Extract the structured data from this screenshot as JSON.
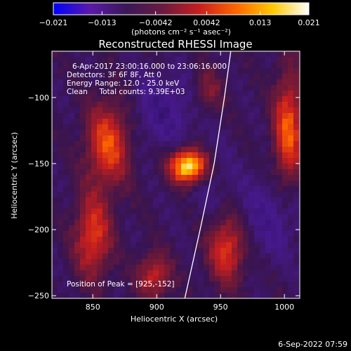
{
  "chart_data": {
    "type": "heatmap",
    "title": "Reconstructed RHESSI Image",
    "xlabel": "Heliocentric X (arcsec)",
    "ylabel": "Heliocentric Y (arcsec)",
    "xlim": [
      818,
      1012
    ],
    "ylim": [
      -252,
      -65
    ],
    "x_ticks": [
      850,
      900,
      950,
      1000
    ],
    "y_ticks": [
      -100,
      -150,
      -200,
      -250
    ],
    "x_tick_labels": [
      "850",
      "900",
      "950",
      "1000"
    ],
    "y_tick_labels": [
      "−100",
      "−150",
      "−200",
      "−250"
    ],
    "colorbar": {
      "range": [
        -0.021,
        0.021
      ],
      "ticks": [
        -0.021,
        -0.013,
        -0.0042,
        0.0042,
        0.013,
        0.021
      ],
      "tick_labels": [
        "−0.021",
        "−0.013",
        "−0.0042",
        "0.0042",
        "0.013",
        "0.021"
      ],
      "unit_label": "(photons cm⁻² s⁻¹ asec⁻²)",
      "colors": [
        "#0000ff",
        "#5a1aa8",
        "#3a1858",
        "#6a1a40",
        "#c81e1e",
        "#ff6600",
        "#ffc800",
        "#ffffff"
      ]
    },
    "annotations": [
      "6-Apr-2017 23:00:16.000 to 23:06:16.000",
      "Detectors: 3F 6F 8F, Att 0",
      "Energy Range: 12.0 - 25.0 keV",
      "Clean     Total counts: 9.39E+03"
    ],
    "peak_label": "Position of Peak = [925,-152]",
    "peak": [
      925,
      -152
    ],
    "limb_curve": [
      [
        922,
        -252
      ],
      [
        934,
        -200
      ],
      [
        945,
        -150
      ],
      [
        953,
        -100
      ],
      [
        958,
        -65
      ]
    ]
  },
  "footer": {
    "timestamp": "6-Sep-2022 07:59"
  }
}
